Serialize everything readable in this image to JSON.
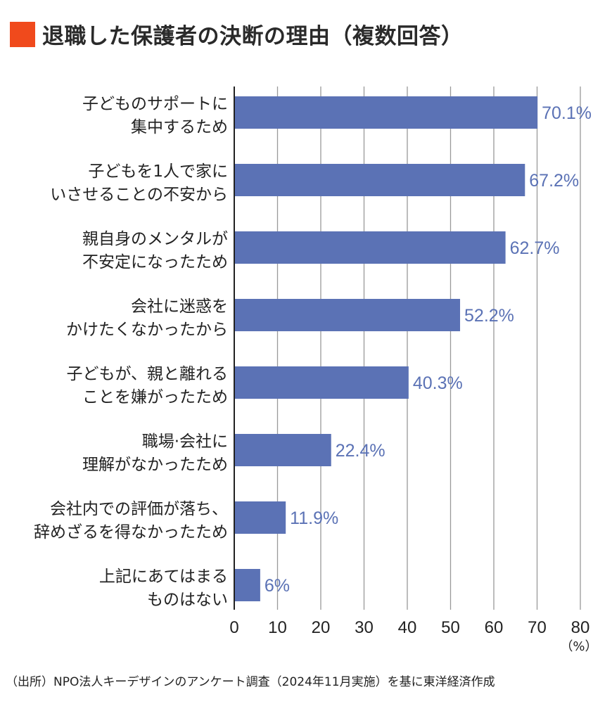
{
  "chart_data": {
    "type": "bar",
    "orientation": "horizontal",
    "title": "退職した保護者の決断の理由（複数回答）",
    "categories": [
      [
        "子どものサポートに",
        "集中するため"
      ],
      [
        "子どもを1人で家に",
        "いさせることの不安から"
      ],
      [
        "親自身のメンタルが",
        "不安定になったため"
      ],
      [
        "会社に迷惑を",
        "かけたくなかったから"
      ],
      [
        "子どもが、親と離れる",
        "ことを嫌がったため"
      ],
      [
        "職場·会社に",
        "理解がなかったため"
      ],
      [
        "会社内での評価が落ち、",
        "辞めざるを得なかったため"
      ],
      [
        "上記にあてはまる",
        "ものはない"
      ]
    ],
    "values": [
      70.1,
      67.2,
      62.7,
      52.2,
      40.3,
      22.4,
      11.9,
      6
    ],
    "value_labels": [
      "70.1%",
      "67.2%",
      "62.7%",
      "52.2%",
      "40.3%",
      "22.4%",
      "11.9%",
      "6%"
    ],
    "xlim": [
      0,
      80
    ],
    "xticks": [
      "0",
      "10",
      "20",
      "30",
      "40",
      "50",
      "60",
      "70",
      "80"
    ],
    "xunit": "（%）",
    "grid": true,
    "colors": {
      "bar": "#5b72b5",
      "label": "#5b72b5",
      "title_mark": "#f04a1c",
      "grid": "#999999"
    }
  },
  "source": "（出所）NPO法人キーデザインのアンケート調査（2024年11月実施）を基に東洋経済作成"
}
